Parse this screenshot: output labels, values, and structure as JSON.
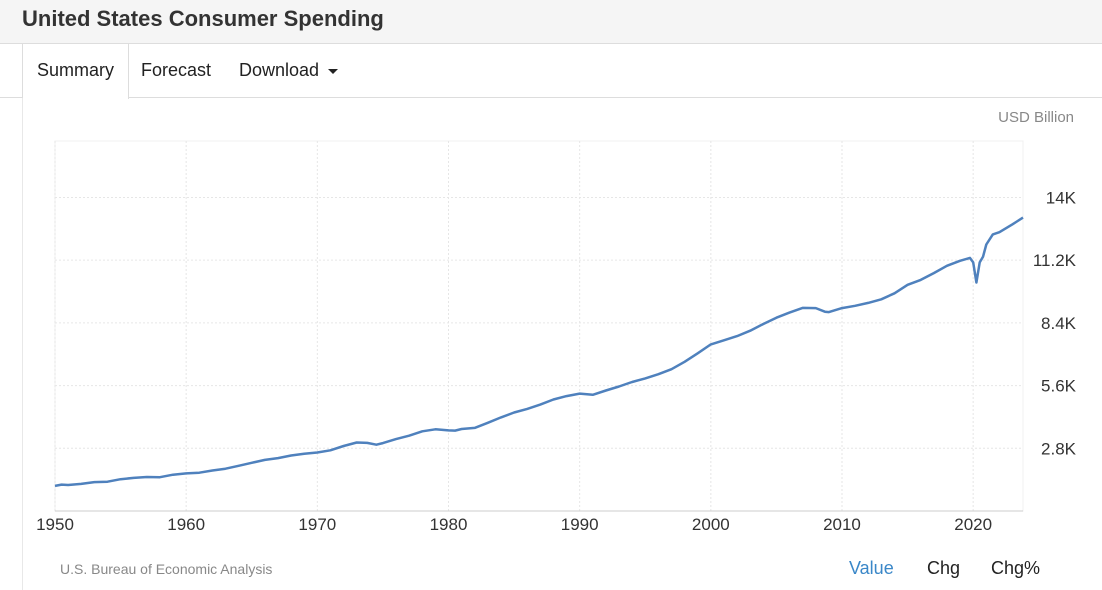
{
  "page": {
    "title": "United States Consumer Spending"
  },
  "tabs": {
    "summary": "Summary",
    "forecast": "Forecast",
    "download": "Download"
  },
  "footer": {
    "source": "U.S. Bureau of Economic Analysis"
  },
  "view_toggle": {
    "value": "Value",
    "chg": "Chg",
    "chg_pct": "Chg%"
  },
  "colors": {
    "line": "#4f81bd",
    "grid": "#e6e6e6",
    "accent": "#3a87c8"
  },
  "chart_data": {
    "type": "line",
    "title": "",
    "unit_label": "USD Billion",
    "xlabel": "",
    "ylabel": "",
    "x_ticks": [
      1950,
      1960,
      1970,
      1980,
      1990,
      2000,
      2010,
      2020
    ],
    "y_ticks": [
      2800,
      5600,
      8400,
      11200,
      14000
    ],
    "y_tick_labels": [
      "2.8K",
      "5.6K",
      "8.4K",
      "11.2K",
      "14K"
    ],
    "xlim": [
      1950,
      2023.8
    ],
    "ylim": [
      0,
      16520
    ],
    "grid": true,
    "series": [
      {
        "name": "Consumer Spending",
        "x": [
          1950,
          1950.5,
          1951,
          1952,
          1953,
          1954,
          1955,
          1956,
          1957,
          1958,
          1959,
          1960,
          1961,
          1962,
          1963,
          1964,
          1965,
          1966,
          1967,
          1968,
          1969,
          1970,
          1971,
          1972,
          1973,
          1973.8,
          1974.5,
          1975,
          1976,
          1977,
          1978,
          1979,
          1980,
          1980.5,
          1981,
          1982,
          1983,
          1984,
          1985,
          1986,
          1987,
          1988,
          1989,
          1990,
          1991,
          1992,
          1993,
          1994,
          1995,
          1996,
          1997,
          1998,
          1999,
          2000,
          2001,
          2002,
          2003,
          2004,
          2005,
          2006,
          2007,
          2008,
          2008.7,
          2009,
          2010,
          2011,
          2012,
          2013,
          2014,
          2015,
          2016,
          2017,
          2018,
          2019,
          2019.75,
          2020,
          2020.25,
          2020.5,
          2020.75,
          2021,
          2021.5,
          2022,
          2023,
          2023.8
        ],
        "values": [
          1120,
          1180,
          1160,
          1210,
          1290,
          1310,
          1420,
          1480,
          1520,
          1510,
          1620,
          1680,
          1710,
          1810,
          1890,
          2020,
          2150,
          2280,
          2360,
          2480,
          2560,
          2610,
          2710,
          2900,
          3060,
          3040,
          2960,
          3030,
          3210,
          3360,
          3560,
          3650,
          3600,
          3590,
          3660,
          3710,
          3940,
          4180,
          4400,
          4560,
          4750,
          4980,
          5130,
          5240,
          5190,
          5380,
          5560,
          5760,
          5920,
          6110,
          6330,
          6660,
          7040,
          7440,
          7620,
          7810,
          8050,
          8350,
          8630,
          8860,
          9070,
          9060,
          8900,
          8880,
          9060,
          9160,
          9290,
          9450,
          9720,
          10100,
          10320,
          10620,
          10950,
          11170,
          11300,
          11100,
          10200,
          11100,
          11350,
          11900,
          12350,
          12450,
          12800,
          13100
        ]
      }
    ]
  }
}
